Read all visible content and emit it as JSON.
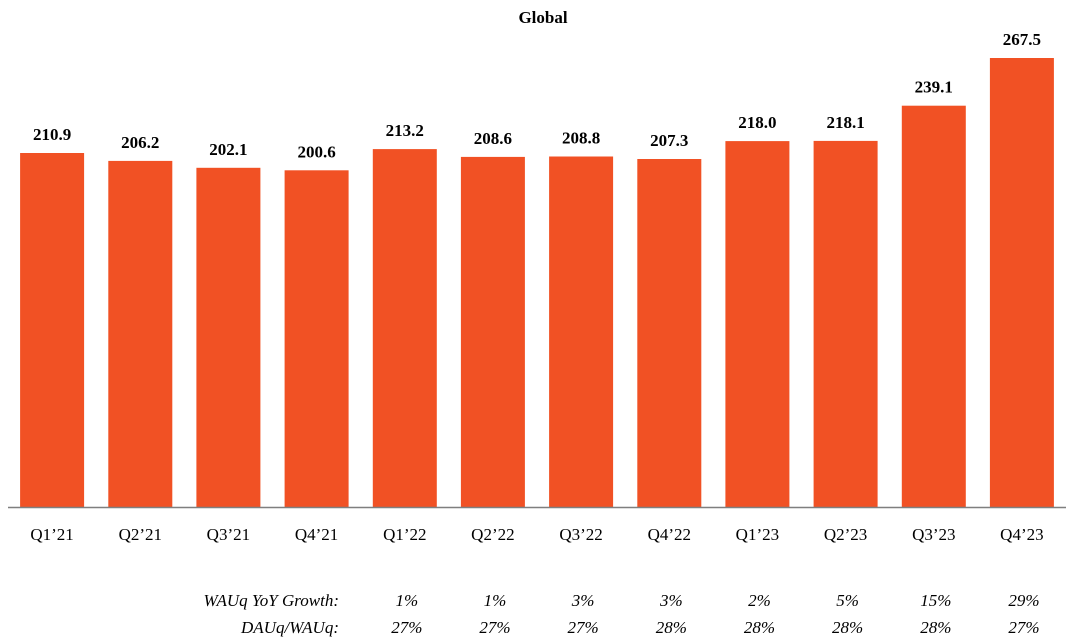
{
  "chart_data": {
    "type": "bar",
    "title": "Global",
    "xlabel": "",
    "ylabel": "",
    "categories": [
      "Q1’21",
      "Q2’21",
      "Q3’21",
      "Q4’21",
      "Q1’22",
      "Q2’22",
      "Q3’22",
      "Q4’22",
      "Q1’23",
      "Q2’23",
      "Q3’23",
      "Q4’23"
    ],
    "values": [
      210.9,
      206.2,
      202.1,
      200.6,
      213.2,
      208.6,
      208.8,
      207.3,
      218.0,
      218.1,
      239.1,
      267.5
    ],
    "value_labels": [
      "210.9",
      "206.2",
      "202.1",
      "200.6",
      "213.2",
      "208.6",
      "208.8",
      "207.3",
      "218.0",
      "218.1",
      "239.1",
      "267.5"
    ],
    "ylim": [
      0,
      267.5
    ],
    "bar_color": "#f15124",
    "axis_color": "#7f7f7f",
    "grid": false,
    "legend": "none",
    "metrics": [
      {
        "label": "WAUq YoY Growth:",
        "values": [
          "1%",
          "1%",
          "3%",
          "3%",
          "2%",
          "5%",
          "15%",
          "29%"
        ]
      },
      {
        "label": "DAUq/WAUq:",
        "values": [
          "27%",
          "27%",
          "27%",
          "28%",
          "28%",
          "28%",
          "28%",
          "27%"
        ]
      }
    ],
    "metrics_start_index": 4
  }
}
